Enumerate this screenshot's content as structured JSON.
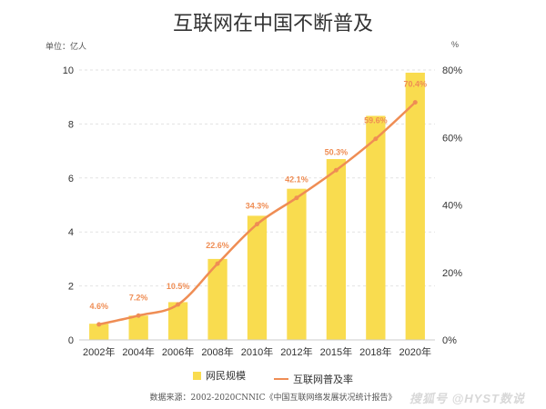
{
  "header": {
    "title": "互联网在中国不断普及",
    "left_unit": "单位：亿人",
    "right_unit": "%"
  },
  "legend": {
    "bar_label": "网民规模",
    "line_label": "互联网普及率"
  },
  "footer": {
    "source": "数据来源：2002-2020CNNIC《中国互联网络发展状况统计报告》",
    "watermark": "搜狐号 @HYST数说"
  },
  "colors": {
    "bar": "#f9dc4f",
    "line": "#ef8d54",
    "label": "#ef8d54",
    "grid": "#e2e2e2",
    "axis_text": "#333333"
  },
  "chart_data": {
    "type": "bar",
    "categories": [
      "2002年",
      "2004年",
      "2006年",
      "2008年",
      "2010年",
      "2012年",
      "2015年",
      "2018年",
      "2020年"
    ],
    "series": [
      {
        "name": "网民规模",
        "type": "bar",
        "axis": "left",
        "values": [
          0.6,
          0.9,
          1.4,
          3.0,
          4.6,
          5.6,
          6.7,
          8.3,
          9.9
        ]
      },
      {
        "name": "互联网普及率",
        "type": "line",
        "axis": "right",
        "values": [
          4.6,
          7.2,
          10.5,
          22.6,
          34.3,
          42.1,
          50.3,
          59.6,
          70.4
        ],
        "labels": [
          "4.6%",
          "7.2%",
          "10.5%",
          "22.6%",
          "34.3%",
          "42.1%",
          "50.3%",
          "59.6%",
          "70.4%"
        ]
      }
    ],
    "y_left": {
      "lim": [
        0,
        10
      ],
      "ticks": [
        "0",
        "2",
        "4",
        "6",
        "8",
        "10"
      ]
    },
    "y_right": {
      "lim": [
        0,
        80
      ],
      "ticks": [
        "0%",
        "20%",
        "40%",
        "60%",
        "80%"
      ]
    },
    "grid": true,
    "legend_position": "bottom"
  }
}
